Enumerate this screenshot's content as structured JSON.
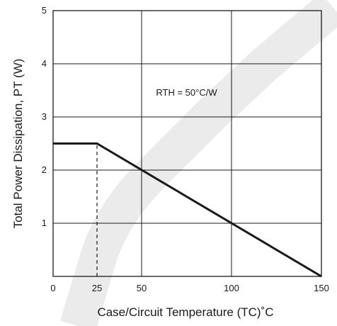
{
  "chart_data": {
    "type": "line",
    "title": "",
    "xlabel": "Case/Circuit Temperature (TC)˚C",
    "ylabel": "Total Power Dissipation, PT (W)",
    "xlim": [
      0,
      150
    ],
    "ylim": [
      0,
      5
    ],
    "x_ticks": [
      "0",
      "25",
      "50",
      "100",
      "150"
    ],
    "y_ticks": [
      "1",
      "2",
      "3",
      "4",
      "5"
    ],
    "grid": true,
    "series": [
      {
        "x": [
          0,
          25,
          150
        ],
        "y": [
          2.5,
          2.5,
          0
        ]
      }
    ],
    "reference_lines": [
      {
        "style": "dashed",
        "x": [
          25,
          25
        ],
        "y": [
          0,
          2.5
        ]
      }
    ],
    "annotations": [
      {
        "text": "RTH = 50°C/W",
        "x": 75,
        "y": 3.4
      }
    ],
    "watermark": "UNSUPPORTED (diagonal, light grey)"
  }
}
